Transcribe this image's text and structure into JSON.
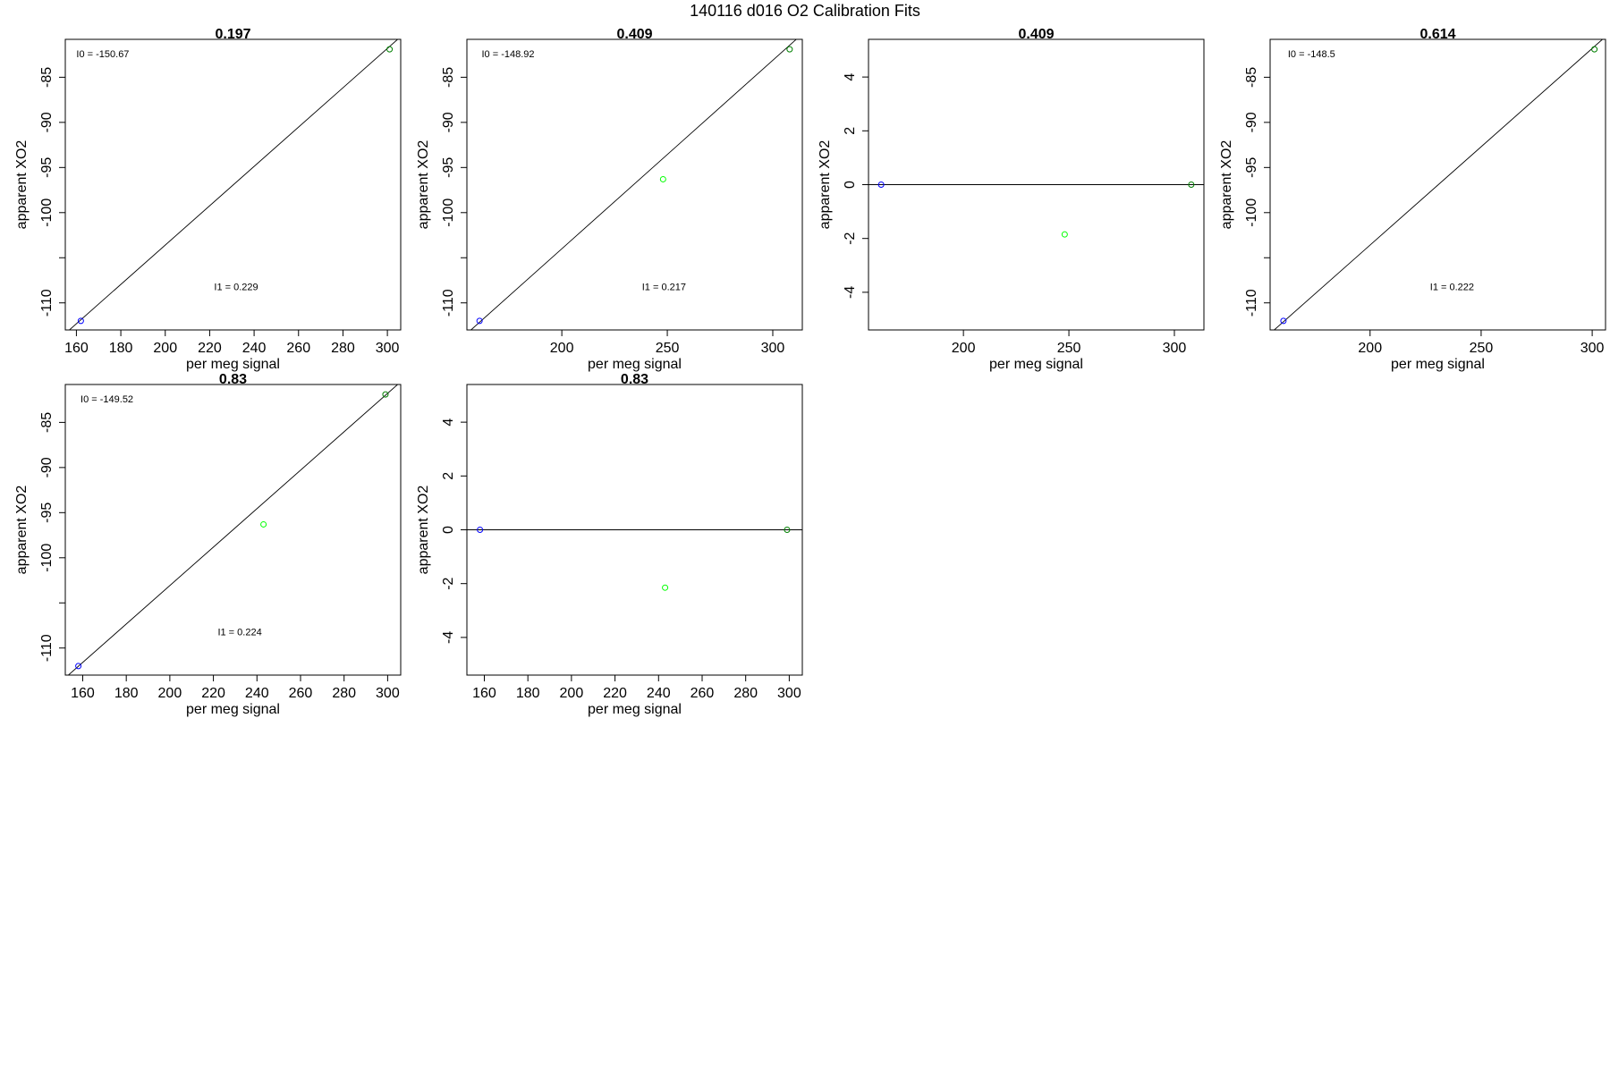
{
  "figure": {
    "title": "140116   d016   O2 Calibration Fits"
  },
  "chart_data": [
    {
      "type": "scatter",
      "title": "0.197",
      "xlabel": "per meg signal",
      "ylabel": "apparent XO2",
      "xlim": [
        155,
        306
      ],
      "ylim": [
        -113,
        -80.8
      ],
      "xticks": [
        160,
        180,
        200,
        220,
        240,
        260,
        280,
        300
      ],
      "xtick_labels": [
        "160",
        "180",
        "200",
        "220",
        "240",
        "260",
        "280",
        "300"
      ],
      "yticks": [
        -110,
        -105,
        -100,
        -95,
        -90,
        -85
      ],
      "ytick_labels": [
        "-110",
        "",
        "-100",
        "-95",
        "-90",
        "-85"
      ],
      "points": [
        {
          "x": 162,
          "y": -112.0,
          "color": "#0000ff"
        },
        {
          "x": 301,
          "y": -81.9,
          "color": "#008000"
        }
      ],
      "fit_line": {
        "x": [
          155,
          306
        ],
        "y": [
          -113.4,
          -80.5
        ]
      },
      "annotations": [
        {
          "label": "I0 =  -150.67",
          "x": 160,
          "y": -82.8
        },
        {
          "label": "I1 =  0.229",
          "x": 222,
          "y": -108.6
        }
      ]
    },
    {
      "type": "scatter",
      "title": "0.409",
      "xlabel": "per meg signal",
      "ylabel": "apparent XO2",
      "xlim": [
        155,
        314
      ],
      "ylim": [
        -113,
        -80.8
      ],
      "xticks": [
        200,
        250,
        300
      ],
      "xtick_labels": [
        "200",
        "250",
        "300"
      ],
      "yticks": [
        -110,
        -105,
        -100,
        -95,
        -90,
        -85
      ],
      "ytick_labels": [
        "-110",
        "",
        "-100",
        "-95",
        "-90",
        "-85"
      ],
      "points": [
        {
          "x": 161,
          "y": -112.0,
          "color": "#0000ff"
        },
        {
          "x": 248,
          "y": -96.3,
          "color": "#00ff00"
        },
        {
          "x": 308,
          "y": -81.9,
          "color": "#008000"
        }
      ],
      "fit_line": {
        "x": [
          155,
          314
        ],
        "y": [
          -113.4,
          -80.2
        ]
      },
      "annotations": [
        {
          "label": "I0 =  -148.92",
          "x": 162,
          "y": -82.8
        },
        {
          "label": "I1 =  0.217",
          "x": 238,
          "y": -108.6
        }
      ]
    },
    {
      "type": "scatter",
      "title": "0.409",
      "xlabel": "per meg signal",
      "ylabel": "apparent XO2",
      "xlim": [
        155,
        314
      ],
      "ylim": [
        -5.4,
        5.4
      ],
      "xticks": [
        200,
        250,
        300
      ],
      "xtick_labels": [
        "200",
        "250",
        "300"
      ],
      "yticks": [
        -4,
        -2,
        0,
        2,
        4
      ],
      "ytick_labels": [
        "-4",
        "-2",
        "0",
        "2",
        "4"
      ],
      "points": [
        {
          "x": 161,
          "y": 0.0,
          "color": "#0000ff"
        },
        {
          "x": 248,
          "y": -1.85,
          "color": "#00ff00"
        },
        {
          "x": 308,
          "y": 0.0,
          "color": "#008000"
        }
      ],
      "fit_line": {
        "x": [
          155,
          314
        ],
        "y": [
          0,
          0
        ]
      },
      "annotations": []
    },
    {
      "type": "scatter",
      "title": "0.614",
      "xlabel": "per meg signal",
      "ylabel": "apparent XO2",
      "xlim": [
        155,
        306
      ],
      "ylim": [
        -113,
        -80.8
      ],
      "xticks": [
        200,
        250,
        300
      ],
      "xtick_labels": [
        "200",
        "250",
        "300"
      ],
      "yticks": [
        -110,
        -105,
        -100,
        -95,
        -90,
        -85
      ],
      "ytick_labels": [
        "-110",
        "",
        "-100",
        "-95",
        "-90",
        "-85"
      ],
      "points": [
        {
          "x": 161,
          "y": -112.0,
          "color": "#0000ff"
        },
        {
          "x": 301,
          "y": -81.9,
          "color": "#008000"
        }
      ],
      "fit_line": {
        "x": [
          155,
          306
        ],
        "y": [
          -113.4,
          -80.5
        ]
      },
      "annotations": [
        {
          "label": "I0 =  -148.5",
          "x": 163,
          "y": -82.8
        },
        {
          "label": "I1 =  0.222",
          "x": 227,
          "y": -108.6
        }
      ]
    },
    {
      "type": "scatter",
      "title": "0.83",
      "xlabel": "per meg signal",
      "ylabel": "apparent XO2",
      "xlim": [
        152,
        306
      ],
      "ylim": [
        -113,
        -80.8
      ],
      "xticks": [
        160,
        180,
        200,
        220,
        240,
        260,
        280,
        300
      ],
      "xtick_labels": [
        "160",
        "180",
        "200",
        "220",
        "240",
        "260",
        "280",
        "300"
      ],
      "yticks": [
        -110,
        -105,
        -100,
        -95,
        -90,
        -85
      ],
      "ytick_labels": [
        "-110",
        "",
        "-100",
        "-95",
        "-90",
        "-85"
      ],
      "points": [
        {
          "x": 158,
          "y": -112.0,
          "color": "#0000ff"
        },
        {
          "x": 243,
          "y": -96.3,
          "color": "#00ff00"
        },
        {
          "x": 299,
          "y": -81.9,
          "color": "#008000"
        }
      ],
      "fit_line": {
        "x": [
          152,
          306
        ],
        "y": [
          -113.3,
          -80.5
        ]
      },
      "annotations": [
        {
          "label": "I0 =  -149.52",
          "x": 159,
          "y": -82.8
        },
        {
          "label": "I1 =  0.224",
          "x": 222,
          "y": -108.6
        }
      ]
    },
    {
      "type": "scatter",
      "title": "0.83",
      "xlabel": "per meg signal",
      "ylabel": "apparent XO2",
      "xlim": [
        152,
        306
      ],
      "ylim": [
        -5.4,
        5.4
      ],
      "xticks": [
        160,
        180,
        200,
        220,
        240,
        260,
        280,
        300
      ],
      "xtick_labels": [
        "160",
        "180",
        "200",
        "220",
        "240",
        "260",
        "280",
        "300"
      ],
      "yticks": [
        -4,
        -2,
        0,
        2,
        4
      ],
      "ytick_labels": [
        "-4",
        "-2",
        "0",
        "2",
        "4"
      ],
      "points": [
        {
          "x": 158,
          "y": 0.0,
          "color": "#0000ff"
        },
        {
          "x": 243,
          "y": -2.15,
          "color": "#00ff00"
        },
        {
          "x": 299,
          "y": 0.0,
          "color": "#008000"
        }
      ],
      "fit_line": {
        "x": [
          152,
          306
        ],
        "y": [
          0,
          0
        ]
      },
      "annotations": []
    }
  ]
}
